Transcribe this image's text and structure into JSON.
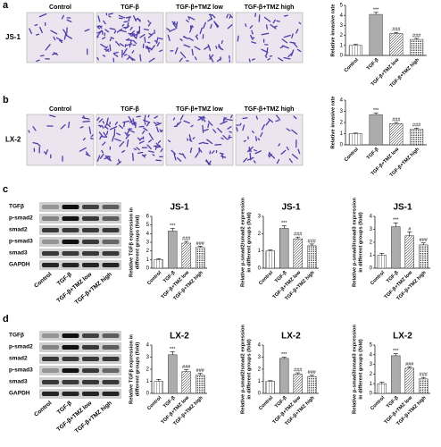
{
  "figure": {
    "panel_labels": [
      "a",
      "b",
      "c",
      "d"
    ],
    "images": [
      {
        "row_label": "JS-1",
        "titles": [
          "Control",
          "TGF-β",
          "TGF-β+TMZ low",
          "TGF-β+TMZ high"
        ]
      },
      {
        "row_label": "LX-2",
        "titles": [
          "Control",
          "TGF-β",
          "TGF-β+TMZ low",
          "TGF-β+TMZ high"
        ]
      }
    ],
    "blots": [
      {
        "rows": [
          "TGFβ",
          "p-smad2",
          "smad2",
          "p-smad3",
          "smad3",
          "GAPDH"
        ],
        "lanes": [
          "Control",
          "TGF-β",
          "TGF-β+TMZ low",
          "TGF-β+TMZ high"
        ]
      },
      {
        "rows": [
          "TGFβ",
          "p-smad2",
          "smad2",
          "p-smad3",
          "smad3",
          "GAPDH"
        ],
        "lanes": [
          "Control",
          "TGF-β",
          "TGF-β+TMZ low",
          "TGF-β+TMZ high"
        ]
      }
    ]
  },
  "chart_data": [
    {
      "type": "bar",
      "ylabel": [
        "Relative invasive rate"
      ],
      "categories": [
        "Control",
        "TGF-β",
        "TGF-β+TMZ low",
        "TGF-β+TMZ high"
      ],
      "values": [
        1.0,
        4.1,
        2.2,
        1.6
      ],
      "errors": [
        0.1,
        0.2,
        0.1,
        0.1
      ],
      "annotations": [
        "***",
        "###",
        "###"
      ],
      "ylim": [
        0,
        5
      ],
      "yticks": [
        0,
        1,
        2,
        3,
        4,
        5
      ]
    },
    {
      "type": "bar",
      "ylabel": [
        "Relative invasive rate"
      ],
      "categories": [
        "Control",
        "TGF-β",
        "TGF-β+TMZ low",
        "TGF-β+TMZ high"
      ],
      "values": [
        1.0,
        2.7,
        1.9,
        1.4
      ],
      "errors": [
        0.05,
        0.15,
        0.1,
        0.1
      ],
      "annotations": [
        "***",
        "###",
        "###"
      ],
      "ylim": [
        0,
        4
      ],
      "yticks": [
        0,
        1,
        2,
        3,
        4
      ]
    },
    {
      "type": "bar",
      "title": "JS-1",
      "ylabel": [
        "Relative TGFβ expression in",
        "different groups (fold)"
      ],
      "categories": [
        "Control",
        "TGF-β",
        "TGF-β+TMZ low",
        "TGF-β+TMZ high"
      ],
      "values": [
        1.0,
        4.3,
        2.9,
        2.4
      ],
      "errors": [
        0.1,
        0.3,
        0.2,
        0.15
      ],
      "annotations": [
        "***",
        "###",
        "###"
      ],
      "ylim": [
        0,
        6
      ],
      "yticks": [
        0,
        1,
        2,
        3,
        4,
        5,
        6
      ]
    },
    {
      "type": "bar",
      "title": "JS-1",
      "ylabel": [
        "Relative p-smad2/smad2 expression",
        "in different groups (fold)"
      ],
      "categories": [
        "Control",
        "TGF-β",
        "TGF-β+TMZ low",
        "TGF-β+TMZ high"
      ],
      "values": [
        1.0,
        2.3,
        1.7,
        1.3
      ],
      "errors": [
        0.05,
        0.15,
        0.1,
        0.1
      ],
      "annotations": [
        "***",
        "###",
        "###"
      ],
      "ylim": [
        0,
        3
      ],
      "yticks": [
        0,
        1,
        2,
        3
      ]
    },
    {
      "type": "bar",
      "title": "JS-1",
      "ylabel": [
        "Relative p-smad3/smad3 expression",
        "in different groups (fold)"
      ],
      "categories": [
        "Control",
        "TGF-β",
        "TGF-β+TMZ low",
        "TGF-β+TMZ high"
      ],
      "values": [
        1.0,
        3.2,
        2.5,
        1.8
      ],
      "errors": [
        0.15,
        0.3,
        0.3,
        0.15
      ],
      "annotations": [
        "***",
        "#",
        "###"
      ],
      "ylim": [
        0,
        4
      ],
      "yticks": [
        0,
        1,
        2,
        3,
        4
      ]
    },
    {
      "type": "bar",
      "title": "LX-2",
      "ylabel": [
        "Relative TGFβ expression in",
        "different groups (fold)"
      ],
      "categories": [
        "Control",
        "TGF-β",
        "TGF-β+TMZ low",
        "TGF-β+TMZ high"
      ],
      "values": [
        1.0,
        3.2,
        1.8,
        1.5
      ],
      "errors": [
        0.15,
        0.25,
        0.15,
        0.15
      ],
      "annotations": [
        "***",
        "###",
        "###"
      ],
      "ylim": [
        0,
        4
      ],
      "yticks": [
        0,
        1,
        2,
        3,
        4
      ]
    },
    {
      "type": "bar",
      "title": "LX-2",
      "ylabel": [
        "Relative p-smad2/smad2 expression",
        "in different groups (fold)"
      ],
      "categories": [
        "Control",
        "TGF-β",
        "TGF-β+TMZ low",
        "TGF-β+TMZ high"
      ],
      "values": [
        1.0,
        2.9,
        1.6,
        1.4
      ],
      "errors": [
        0.05,
        0.1,
        0.1,
        0.1
      ],
      "annotations": [
        "***",
        "###",
        "###"
      ],
      "ylim": [
        0,
        4
      ],
      "yticks": [
        0,
        1,
        2,
        3,
        4
      ]
    },
    {
      "type": "bar",
      "title": "LX-2",
      "ylabel": [
        "Relative p-smad3/smad3 expression",
        "in different groups (fold)"
      ],
      "categories": [
        "Control",
        "TGF-β",
        "TGF-β+TMZ low",
        "TGF-β+TMZ high"
      ],
      "values": [
        1.0,
        3.9,
        2.6,
        1.5
      ],
      "errors": [
        0.15,
        0.2,
        0.15,
        0.15
      ],
      "annotations": [
        "***",
        "###",
        "###"
      ],
      "ylim": [
        0,
        5
      ],
      "yticks": [
        0,
        1,
        2,
        3,
        4,
        5
      ]
    }
  ]
}
